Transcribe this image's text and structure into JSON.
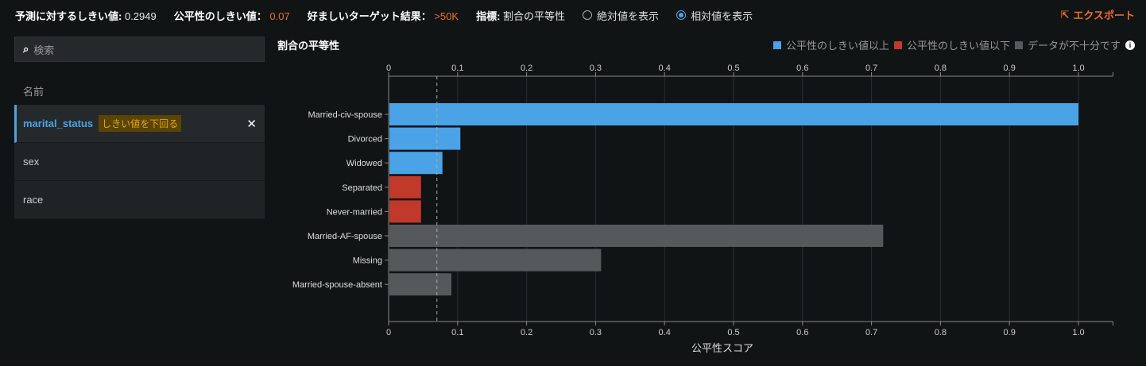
{
  "topbar": {
    "pred_threshold_label": "予測に対するしきい値:",
    "pred_threshold": "0.2949",
    "fair_threshold_label": "公平性のしきい値：",
    "fair_threshold": "0.07",
    "target_label": "好ましいターゲット結果：",
    "target": ">50K",
    "metric_label": "指標:",
    "metric": "割合の平等性",
    "radio_abs": "絶対値を表示",
    "radio_rel": "相対値を表示",
    "export": "エクスポート"
  },
  "sidebar": {
    "search_placeholder": "検索",
    "name_header": "名前",
    "items": [
      {
        "label": "marital_status",
        "badge": "しきい値を下回る"
      },
      {
        "label": "sex"
      },
      {
        "label": "race"
      }
    ]
  },
  "chart_data": {
    "type": "bar",
    "orientation": "horizontal",
    "title": "割合の平等性",
    "xlabel": "公平性スコア",
    "xlim": [
      0,
      1.05
    ],
    "xticks": [
      "0",
      "0.1",
      "0.2",
      "0.3",
      "0.4",
      "0.5",
      "0.6",
      "0.7",
      "0.8",
      "0.9",
      "1.0"
    ],
    "threshold": 0.07,
    "legend": [
      {
        "label": "公平性のしきい値以上",
        "color": "#4aa3e6"
      },
      {
        "label": "公平性のしきい値以下",
        "color": "#c0392b"
      },
      {
        "label": "データが不十分です",
        "color": "#55595b"
      }
    ],
    "categories": [
      "Married-civ-spouse",
      "Divorced",
      "Widowed",
      "Separated",
      "Never-married",
      "Married-AF-spouse",
      "Missing",
      "Married-spouse-absent"
    ],
    "values": [
      1.0,
      0.104,
      0.078,
      0.047,
      0.047,
      0.717,
      0.308,
      0.091
    ],
    "status": [
      "above",
      "above",
      "above",
      "below",
      "below",
      "insufficient",
      "insufficient",
      "insufficient"
    ]
  }
}
